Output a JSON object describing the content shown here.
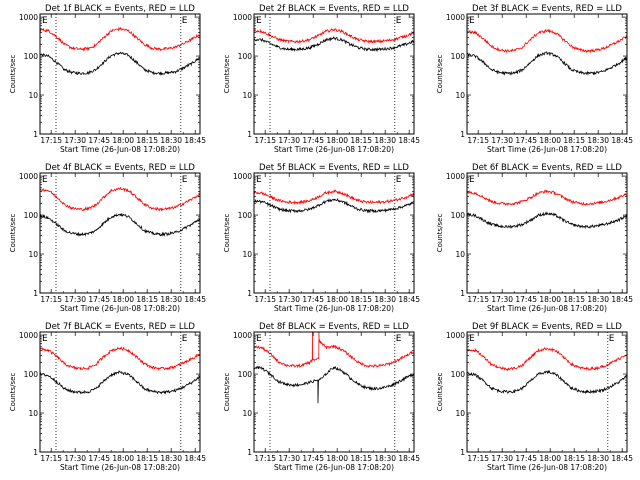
{
  "figure": {
    "x_axis_title": "Start Time (26-Jun-08 17:08:20)",
    "y_axis_title": "Counts/sec",
    "x_tick_labels": [
      "17:15",
      "17:30",
      "17:45",
      "18:00",
      "18:15",
      "18:30",
      "18:45"
    ],
    "y_tick_labels": [
      "1",
      "10",
      "100",
      "1000"
    ],
    "marker_start": "E",
    "marker_end": "E",
    "colors": {
      "events": "#000000",
      "lld": "#ff0000",
      "axis": "#000000"
    }
  },
  "chart_data": [
    {
      "type": "line",
      "title": "Det 1f BLACK = Events, RED = LLD",
      "xlim_minutes_since_start": [
        0,
        100
      ],
      "ylim": [
        1,
        1200
      ],
      "y_scale": "log",
      "vlines_minutes": [
        10,
        88
      ],
      "series": [
        {
          "name": "Events",
          "color": "#000000",
          "x": [
            0,
            5,
            10,
            15,
            20,
            25,
            30,
            35,
            40,
            45,
            50,
            55,
            60,
            65,
            70,
            75,
            80,
            85,
            90,
            95,
            100
          ],
          "y": [
            110,
            100,
            70,
            45,
            38,
            36,
            37,
            45,
            70,
            105,
            120,
            105,
            70,
            45,
            38,
            36,
            37,
            40,
            50,
            65,
            90
          ]
        },
        {
          "name": "LLD",
          "color": "#ff0000",
          "x": [
            0,
            5,
            10,
            15,
            20,
            25,
            30,
            35,
            40,
            45,
            50,
            55,
            60,
            65,
            70,
            75,
            80,
            85,
            90,
            95,
            100
          ],
          "y": [
            480,
            450,
            320,
            200,
            160,
            150,
            155,
            190,
            300,
            450,
            500,
            450,
            300,
            200,
            160,
            150,
            155,
            170,
            210,
            270,
            360
          ]
        }
      ]
    },
    {
      "type": "line",
      "title": "Det 2f BLACK = Events, RED = LLD",
      "xlim_minutes_since_start": [
        0,
        100
      ],
      "ylim": [
        1,
        1200
      ],
      "y_scale": "log",
      "vlines_minutes": [
        10,
        88
      ],
      "series": [
        {
          "name": "Events",
          "color": "#000000",
          "x": [
            0,
            5,
            10,
            15,
            20,
            25,
            30,
            35,
            40,
            45,
            50,
            55,
            60,
            65,
            70,
            75,
            80,
            85,
            90,
            95,
            100
          ],
          "y": [
            270,
            260,
            210,
            170,
            150,
            148,
            150,
            165,
            200,
            260,
            290,
            260,
            200,
            165,
            150,
            148,
            150,
            158,
            175,
            200,
            240
          ]
        },
        {
          "name": "LLD",
          "color": "#ff0000",
          "x": [
            0,
            5,
            10,
            15,
            20,
            25,
            30,
            35,
            40,
            45,
            50,
            55,
            60,
            65,
            70,
            75,
            80,
            85,
            90,
            95,
            100
          ],
          "y": [
            450,
            430,
            340,
            270,
            240,
            235,
            240,
            265,
            330,
            430,
            480,
            430,
            330,
            265,
            240,
            235,
            240,
            255,
            285,
            330,
            400
          ]
        }
      ]
    },
    {
      "type": "line",
      "title": "Det 3f BLACK = Events, RED = LLD",
      "xlim_minutes_since_start": [
        0,
        100
      ],
      "ylim": [
        1,
        1200
      ],
      "y_scale": "log",
      "vlines_minutes": [],
      "series": [
        {
          "name": "Events",
          "color": "#000000",
          "x": [
            0,
            5,
            10,
            15,
            20,
            25,
            30,
            35,
            40,
            45,
            50,
            55,
            60,
            65,
            70,
            75,
            80,
            85,
            90,
            95,
            100
          ],
          "y": [
            110,
            100,
            70,
            45,
            38,
            36,
            37,
            45,
            70,
            105,
            120,
            105,
            70,
            45,
            38,
            36,
            37,
            40,
            50,
            65,
            90
          ]
        },
        {
          "name": "LLD",
          "color": "#ff0000",
          "x": [
            0,
            5,
            10,
            15,
            20,
            25,
            30,
            35,
            40,
            45,
            50,
            55,
            60,
            65,
            70,
            75,
            80,
            85,
            90,
            95,
            100
          ],
          "y": [
            420,
            400,
            280,
            180,
            145,
            135,
            140,
            170,
            270,
            400,
            450,
            400,
            270,
            180,
            145,
            135,
            140,
            155,
            190,
            240,
            320
          ]
        }
      ]
    },
    {
      "type": "line",
      "title": "Det 4f BLACK = Events, RED = LLD",
      "xlim_minutes_since_start": [
        0,
        100
      ],
      "ylim": [
        1,
        1200
      ],
      "y_scale": "log",
      "vlines_minutes": [
        10,
        88
      ],
      "series": [
        {
          "name": "Events",
          "color": "#000000",
          "x": [
            0,
            5,
            10,
            15,
            20,
            25,
            30,
            35,
            40,
            45,
            50,
            55,
            60,
            65,
            70,
            75,
            80,
            85,
            90,
            95,
            100
          ],
          "y": [
            95,
            85,
            60,
            40,
            34,
            32,
            33,
            40,
            62,
            92,
            105,
            92,
            62,
            40,
            34,
            32,
            33,
            36,
            45,
            58,
            80
          ]
        },
        {
          "name": "LLD",
          "color": "#ff0000",
          "x": [
            0,
            5,
            10,
            15,
            20,
            25,
            30,
            35,
            40,
            45,
            50,
            55,
            60,
            65,
            70,
            75,
            80,
            85,
            90,
            95,
            100
          ],
          "y": [
            460,
            430,
            300,
            190,
            150,
            140,
            145,
            180,
            290,
            430,
            480,
            430,
            290,
            190,
            150,
            140,
            145,
            160,
            200,
            255,
            340
          ]
        }
      ]
    },
    {
      "type": "line",
      "title": "Det 5f BLACK = Events, RED = LLD",
      "xlim_minutes_since_start": [
        0,
        100
      ],
      "ylim": [
        1,
        1200
      ],
      "y_scale": "log",
      "vlines_minutes": [
        10,
        88
      ],
      "series": [
        {
          "name": "Events",
          "color": "#000000",
          "x": [
            0,
            5,
            10,
            15,
            20,
            25,
            30,
            35,
            40,
            45,
            50,
            55,
            60,
            65,
            70,
            75,
            80,
            85,
            90,
            95,
            100
          ],
          "y": [
            230,
            220,
            180,
            145,
            130,
            128,
            130,
            142,
            175,
            225,
            250,
            225,
            175,
            142,
            130,
            128,
            130,
            138,
            152,
            175,
            210
          ]
        },
        {
          "name": "LLD",
          "color": "#ff0000",
          "x": [
            0,
            5,
            10,
            15,
            20,
            25,
            30,
            35,
            40,
            45,
            50,
            55,
            60,
            65,
            70,
            75,
            80,
            85,
            90,
            95,
            100
          ],
          "y": [
            380,
            365,
            295,
            240,
            215,
            212,
            215,
            235,
            290,
            370,
            410,
            370,
            290,
            235,
            215,
            212,
            215,
            228,
            250,
            290,
            345
          ]
        }
      ]
    },
    {
      "type": "line",
      "title": "Det 6f BLACK = Events, RED = LLD",
      "xlim_minutes_since_start": [
        0,
        100
      ],
      "ylim": [
        1,
        1200
      ],
      "y_scale": "log",
      "vlines_minutes": [],
      "series": [
        {
          "name": "Events",
          "color": "#000000",
          "x": [
            0,
            5,
            10,
            15,
            20,
            25,
            30,
            35,
            40,
            45,
            50,
            55,
            60,
            65,
            70,
            75,
            80,
            85,
            90,
            95,
            100
          ],
          "y": [
            105,
            98,
            75,
            58,
            52,
            50,
            52,
            58,
            75,
            100,
            110,
            100,
            75,
            58,
            52,
            50,
            52,
            56,
            64,
            76,
            95
          ]
        },
        {
          "name": "LLD",
          "color": "#ff0000",
          "x": [
            0,
            5,
            10,
            15,
            20,
            25,
            30,
            35,
            40,
            45,
            50,
            55,
            60,
            65,
            70,
            75,
            80,
            85,
            90,
            95,
            100
          ],
          "y": [
            390,
            370,
            290,
            225,
            200,
            195,
            200,
            225,
            285,
            370,
            410,
            370,
            285,
            225,
            200,
            195,
            200,
            215,
            245,
            285,
            350
          ]
        }
      ]
    },
    {
      "type": "line",
      "title": "Det 7f BLACK = Events, RED = LLD",
      "xlim_minutes_since_start": [
        0,
        100
      ],
      "ylim": [
        1,
        1200
      ],
      "y_scale": "log",
      "vlines_minutes": [
        10,
        88
      ],
      "series": [
        {
          "name": "Events",
          "color": "#000000",
          "x": [
            0,
            5,
            10,
            15,
            20,
            25,
            30,
            35,
            40,
            45,
            50,
            55,
            60,
            65,
            70,
            75,
            80,
            85,
            90,
            95,
            100
          ],
          "y": [
            100,
            92,
            65,
            42,
            36,
            34,
            35,
            42,
            66,
            98,
            112,
            98,
            66,
            42,
            36,
            34,
            35,
            38,
            47,
            61,
            85
          ]
        },
        {
          "name": "LLD",
          "color": "#ff0000",
          "x": [
            0,
            5,
            10,
            15,
            20,
            25,
            30,
            35,
            40,
            45,
            50,
            55,
            60,
            65,
            70,
            75,
            80,
            85,
            90,
            95,
            100
          ],
          "y": [
            440,
            410,
            290,
            185,
            148,
            138,
            142,
            175,
            280,
            410,
            460,
            410,
            280,
            185,
            148,
            138,
            142,
            158,
            195,
            248,
            330
          ]
        }
      ]
    },
    {
      "type": "line",
      "title": "Det 8f BLACK = Events, RED = LLD",
      "xlim_minutes_since_start": [
        0,
        100
      ],
      "ylim": [
        1,
        1200
      ],
      "y_scale": "log",
      "vlines_minutes": [
        10,
        88
      ],
      "series": [
        {
          "name": "Events",
          "color": "#000000",
          "x": [
            0,
            5,
            10,
            15,
            20,
            25,
            30,
            35,
            39.9,
            40,
            40.3,
            43,
            45,
            50,
            55,
            60,
            65,
            70,
            75,
            80,
            85,
            90,
            95,
            100
          ],
          "y": [
            150,
            140,
            100,
            65,
            55,
            52,
            54,
            62,
            70,
            18,
            70,
            80,
            100,
            150,
            120,
            80,
            55,
            45,
            42,
            44,
            50,
            62,
            80,
            100
          ]
        },
        {
          "name": "LLD",
          "color": "#ff0000",
          "x": [
            0,
            5,
            10,
            15,
            20,
            25,
            30,
            35,
            36.4,
            36.5,
            36.6,
            40.5,
            40.6,
            40.7,
            45,
            50,
            55,
            60,
            65,
            70,
            75,
            80,
            85,
            90,
            95,
            100
          ],
          "y": [
            500,
            470,
            330,
            210,
            170,
            160,
            165,
            200,
            230,
            1200,
            230,
            250,
            1200,
            700,
            480,
            520,
            420,
            290,
            200,
            165,
            160,
            165,
            185,
            230,
            290,
            380
          ]
        }
      ]
    },
    {
      "type": "line",
      "title": "Det 9f BLACK = Events, RED = LLD",
      "xlim_minutes_since_start": [
        0,
        100
      ],
      "ylim": [
        1,
        1200
      ],
      "y_scale": "log",
      "vlines_minutes": [
        88
      ],
      "series": [
        {
          "name": "Events",
          "color": "#000000",
          "x": [
            0,
            5,
            10,
            15,
            20,
            25,
            30,
            35,
            40,
            45,
            50,
            55,
            60,
            65,
            70,
            75,
            80,
            85,
            90,
            95,
            100
          ],
          "y": [
            105,
            96,
            68,
            44,
            37,
            35,
            36,
            44,
            68,
            100,
            115,
            100,
            68,
            44,
            37,
            35,
            36,
            39,
            48,
            62,
            88
          ]
        },
        {
          "name": "LLD",
          "color": "#ff0000",
          "x": [
            0,
            5,
            10,
            15,
            20,
            25,
            30,
            35,
            40,
            45,
            50,
            55,
            60,
            65,
            70,
            75,
            80,
            85,
            90,
            95,
            100
          ],
          "y": [
            430,
            405,
            285,
            182,
            146,
            136,
            140,
            172,
            275,
            405,
            455,
            405,
            275,
            182,
            146,
            136,
            140,
            156,
            192,
            245,
            325
          ]
        }
      ]
    }
  ]
}
